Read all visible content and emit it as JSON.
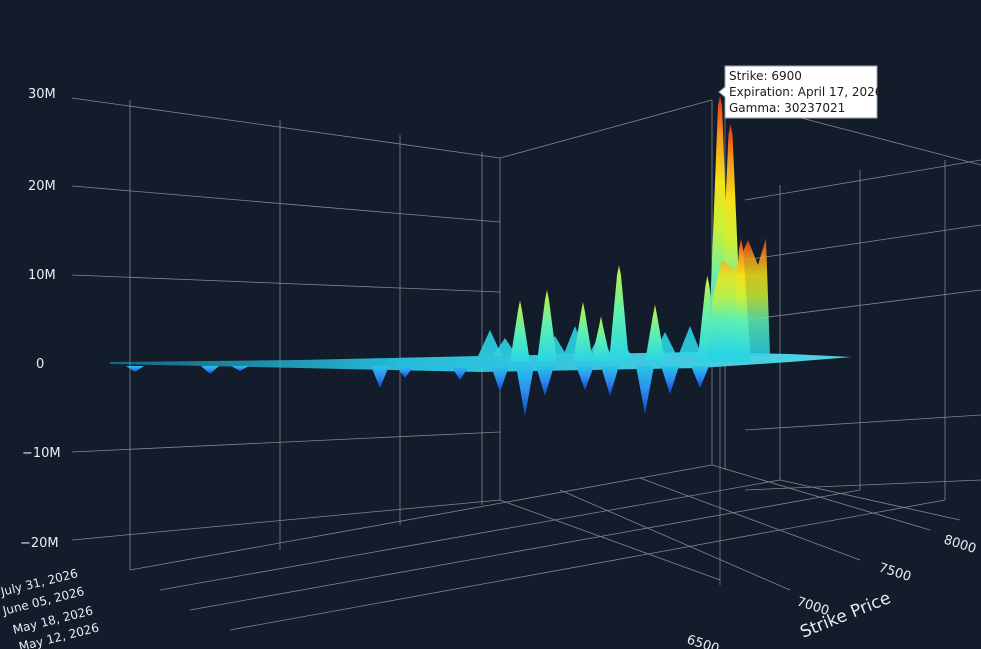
{
  "chart_data": {
    "type": "surface",
    "title": "",
    "z_axis": {
      "ticks": [
        "30M",
        "20M",
        "10M",
        "0",
        "−10M",
        "−20M"
      ],
      "range": [
        -20000000,
        30000000
      ]
    },
    "x_axis": {
      "title": "Strike Price",
      "ticks": [
        "6500",
        "7000",
        "7500",
        "8000"
      ]
    },
    "y_axis": {
      "title": "",
      "ticks": [
        "July 31, 2026",
        "June 05, 2026",
        "May 18, 2026",
        "May 12, 2026"
      ]
    },
    "colorscale": [
      "#0d47c9",
      "#2c8cf0",
      "#27d3e8",
      "#5cf0b4",
      "#c8f03a",
      "#f4e21a",
      "#f59a1c",
      "#e8321c"
    ],
    "ridges": [
      {
        "strike": 6690,
        "gamma": 7000000
      },
      {
        "strike": 6720,
        "gamma": 8200000
      },
      {
        "strike": 6760,
        "gamma": 6800000
      },
      {
        "strike": 6780,
        "gamma": 5200000
      },
      {
        "strike": 6800,
        "gamma": 11000000
      },
      {
        "strike": 6840,
        "gamma": 6500000
      },
      {
        "strike": 6870,
        "gamma": 9800000
      },
      {
        "strike": 6900,
        "gamma": 30237021
      },
      {
        "strike": 6925,
        "gamma": 27000000
      },
      {
        "strike": 6950,
        "gamma": 14000000
      }
    ],
    "hover": {
      "line1": "Strike: 6900",
      "line2": "Expiration: April 17, 2026",
      "line3": "Gamma: 30237021"
    }
  },
  "colors": {
    "background": "#131c2b",
    "grid": "#d9dde6",
    "text": "#e8ecf3",
    "zero_plane": "#27c6e4",
    "hover_bg": "#ffffff"
  }
}
